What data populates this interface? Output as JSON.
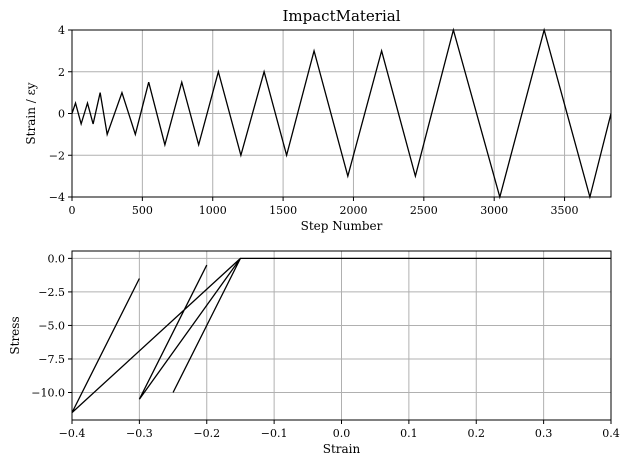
{
  "chart_data": [
    {
      "type": "line",
      "title": "ImpactMaterial",
      "xlabel": "Step Number",
      "ylabel": "Strain / εy",
      "xlim": [
        0,
        3830
      ],
      "ylim": [
        -4,
        4
      ],
      "grid": true,
      "xticks": [
        0,
        500,
        1000,
        1500,
        2000,
        2500,
        3000,
        3500
      ],
      "yticks": [
        -4,
        -2,
        0,
        2,
        4
      ],
      "xtick_labels": [
        "0",
        "500",
        "1000",
        "1500",
        "2000",
        "2500",
        "3000",
        "3500"
      ],
      "ytick_labels": [
        "−4",
        "−2",
        "0",
        "2",
        "4"
      ],
      "series": [
        {
          "x": [
            0,
            25,
            65,
            110,
            150,
            200,
            250,
            355,
            450,
            545,
            660,
            780,
            900,
            1040,
            1200,
            1365,
            1525,
            1720,
            1960,
            2200,
            2440,
            2710,
            3040,
            3355,
            3680,
            3830
          ],
          "y": [
            0,
            0.5,
            -0.5,
            0.5,
            -0.5,
            1.0,
            -1.0,
            1.0,
            -1.0,
            1.5,
            -1.5,
            1.5,
            -1.5,
            2.0,
            -2.0,
            2.0,
            -2.0,
            3.0,
            -3.0,
            3.0,
            -3.0,
            4.0,
            -4.0,
            4.0,
            -4.0,
            0
          ]
        }
      ]
    },
    {
      "type": "line",
      "title": "",
      "xlabel": "Strain",
      "ylabel": "Stress",
      "xlim": [
        -0.4,
        0.4
      ],
      "ylim": [
        -12.05,
        0.55
      ],
      "grid": true,
      "xticks": [
        -0.4,
        -0.3,
        -0.2,
        -0.1,
        0.0,
        0.1,
        0.2,
        0.3,
        0.4
      ],
      "yticks": [
        0,
        -2.5,
        -5,
        -7.5,
        -10
      ],
      "xtick_labels": [
        "−0.4",
        "−0.3",
        "−0.2",
        "−0.1",
        "0.0",
        "0.1",
        "0.2",
        "0.3",
        "0.4"
      ],
      "ytick_labels": [
        "0.0",
        "−2.5",
        "−5.0",
        "−7.5",
        "−10.0"
      ],
      "series": [
        {
          "x": [
            0.4,
            -0.15,
            -0.15,
            -0.25,
            -0.25,
            -0.15,
            -0.15,
            -0.25,
            -0.25,
            -0.15,
            -0.15,
            -0.3,
            -0.3,
            -0.2,
            -0.2,
            -0.3,
            -0.3,
            -0.15,
            -0.15,
            -0.4,
            -0.4,
            -0.3,
            -0.3,
            -0.4,
            -0.4,
            -0.15,
            0.4
          ],
          "y": [
            0,
            0,
            0,
            -10,
            -10,
            0,
            0,
            -10,
            -10,
            0,
            0,
            -10.5,
            -10.5,
            -0.5,
            -0.5,
            -10.5,
            -10.5,
            0,
            0,
            -11.5,
            -11.5,
            -1.5,
            -1.5,
            -11.5,
            -11.5,
            0,
            0
          ]
        }
      ]
    }
  ]
}
